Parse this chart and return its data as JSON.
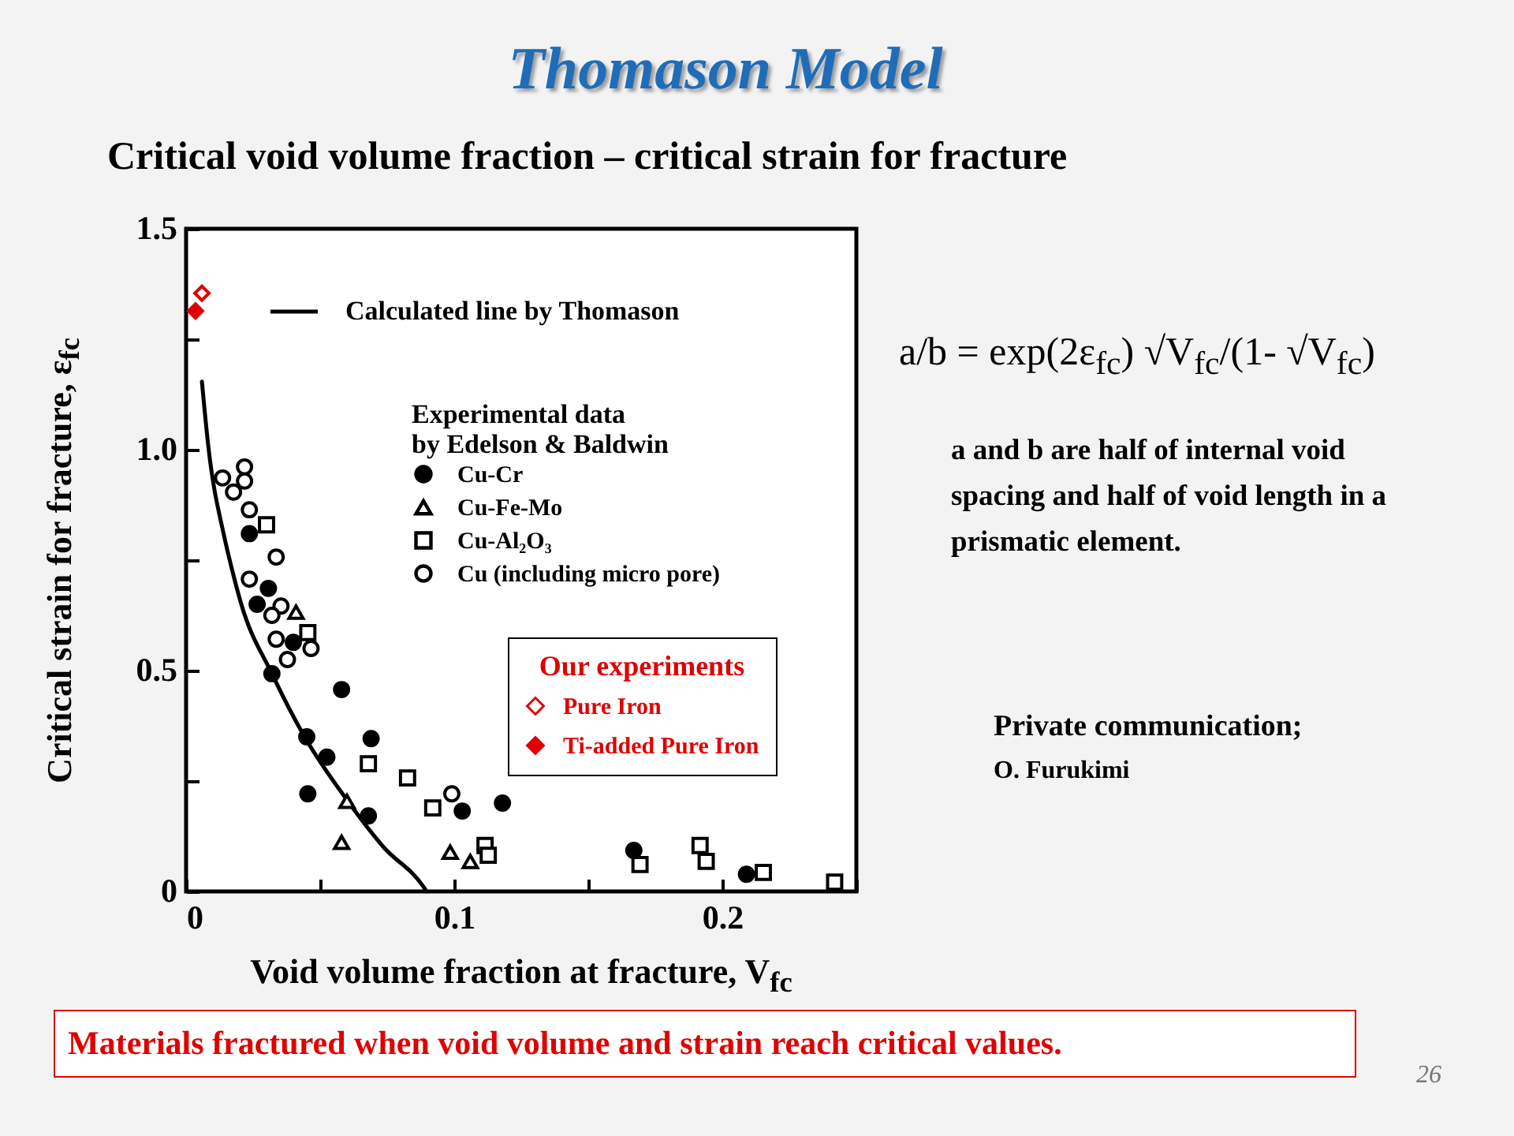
{
  "chart_data": {
    "type": "scatter",
    "title": "Thomason Model",
    "subtitle": "Critical void volume fraction – critical strain for fracture",
    "xlabel": "Void volume fraction at fracture, V$_{fc}$",
    "ylabel": "Critical strain for fracture, ε$_{fc}$",
    "legend_title": "Experimental data\nby Edelson  & Baldwin",
    "xlim": [
      0,
      0.25
    ],
    "xticks": [
      0,
      {
        "value": 0.05,
        "label": null
      },
      0.1,
      {
        "value": 0.15,
        "label": null
      },
      0.2,
      {
        "value": 0.25,
        "label": null
      }
    ],
    "ylim": [
      0,
      1.5
    ],
    "yticks": [
      0,
      {
        "value": 0.25,
        "label": null
      },
      0.5,
      {
        "value": 0.75,
        "label": null
      },
      {
        "value": 1,
        "label": "1.0"
      },
      {
        "value": 1.25,
        "label": null
      },
      1.5
    ],
    "legend": "top right",
    "annotations": [
      "Our experiments",
      "a/b = exp(2ε$_{fc}$) √V$_{fc}$/(1- √V$_{fc}$)",
      "a and b are half of internal void spacing and half of void length in a prismatic element.",
      "Private communication;",
      "O. Furukimi",
      "Materials fractured when void volume and strain reach critical values.",
      "26"
    ],
    "series": [
      {
        "name": "Calculated line by Thomason",
        "type": "line",
        "color": "#000000",
        "x": [
          0.0059,
          0.0083,
          0.0142,
          0.017,
          0.0206,
          0.032,
          0.0442,
          0.06,
          0.0737,
          0.0885,
          0.0897
        ],
        "values": [
          1.154,
          1.007,
          0.804,
          0.732,
          0.65,
          0.493,
          0.35,
          0.207,
          0.1,
          0.011,
          0
        ]
      },
      {
        "name": "Cu-Cr",
        "marker": "circle",
        "color": "#000000",
        "x": [
          0.0236,
          0.0307,
          0.0265,
          0.04,
          0.032,
          0.058,
          0.069,
          0.045,
          0.0525,
          0.0454,
          0.068,
          0.103,
          0.118,
          0.167,
          0.209
        ],
        "values": [
          0.81,
          0.686,
          0.65,
          0.564,
          0.493,
          0.457,
          0.346,
          0.35,
          0.304,
          0.221,
          0.171,
          0.182,
          0.2,
          0.093,
          0.039
        ]
      },
      {
        "name": "Cu-Fe-Mo",
        "marker": "triangle",
        "color": "#000000",
        "x": [
          0.041,
          0.06,
          0.058,
          0.0985,
          0.106
        ],
        "values": [
          0.632,
          0.204,
          0.111,
          0.089,
          0.068
        ]
      },
      {
        "name": "Cu-Al₂O₃",
        "marker": "square",
        "color": "#000000",
        "x": [
          0.03,
          0.0454,
          0.068,
          0.0826,
          0.092,
          0.1115,
          0.1127,
          0.1693,
          0.1917,
          0.194,
          0.2153,
          0.2419
        ],
        "values": [
          0.83,
          0.586,
          0.289,
          0.257,
          0.189,
          0.104,
          0.082,
          0.061,
          0.104,
          0.068,
          0.043,
          0.021
        ]
      },
      {
        "name": "Cu (including micro pore)",
        "marker": "circle",
        "color": "#000000",
        "x": [
          0.0136,
          0.0218,
          0.0218,
          0.0177,
          0.0236,
          0.0336,
          0.0236,
          0.0354,
          0.032,
          0.0336,
          0.0378,
          0.0466,
          0.0991
        ],
        "values": [
          0.936,
          0.961,
          0.929,
          0.904,
          0.864,
          0.757,
          0.707,
          0.646,
          0.625,
          0.571,
          0.525,
          0.55,
          0.221
        ]
      },
      {
        "name": "Pure Iron",
        "marker": "diamond",
        "color": "#e00000",
        "x": [
          0.0059
        ],
        "values": [
          1.354
        ]
      },
      {
        "name": "Ti-added Pure Iron",
        "marker": "diamond",
        "color": "#e00000",
        "x": [
          0.0035
        ],
        "values": [
          1.314
        ]
      }
    ]
  }
}
